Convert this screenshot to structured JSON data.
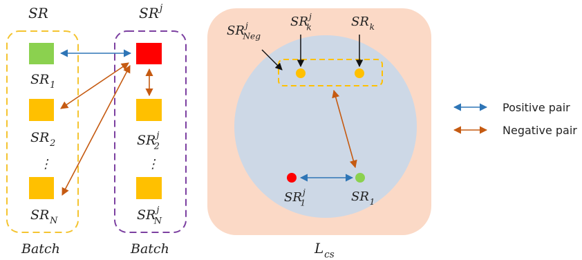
{
  "colors": {
    "batch_left_border": "#f4c430",
    "batch_right_border": "#7b3fa0",
    "anchor_green": "#8bd14f",
    "anchor_red": "#ff0000",
    "sample_orange": "#ffc000",
    "region_fill": "#fbd9c6",
    "circle_fill": "#cdd8e6",
    "positive_arrow": "#2e75b6",
    "negative_arrow": "#c55a11",
    "text": "#222222"
  },
  "left": {
    "col1_header": {
      "base": "SR",
      "sup": "",
      "sub": ""
    },
    "col2_header": {
      "base": "SR",
      "sup": "j",
      "sub": ""
    },
    "col1_labels": [
      {
        "base": "SR",
        "sup": "",
        "sub": "1"
      },
      {
        "base": "SR",
        "sup": "",
        "sub": "2"
      },
      {
        "base": "SR",
        "sup": "",
        "sub": "N"
      }
    ],
    "col2_labels": [
      {
        "base": "SR",
        "sup": "j",
        "sub": "2"
      },
      {
        "base": "SR",
        "sup": "j",
        "sub": "N"
      }
    ],
    "ellipsis": "⋮",
    "batch_label_1": "Batch",
    "batch_label_2": "Batch"
  },
  "right": {
    "neg_label": {
      "base": "SR",
      "sup": "j",
      "sub": "Neg"
    },
    "k_j_label": {
      "base": "SR",
      "sup": "j",
      "sub": "k"
    },
    "k_label": {
      "base": "SR",
      "sup": "",
      "sub": "k"
    },
    "one_j_label": {
      "base": "SR",
      "sup": "j",
      "sub": "1"
    },
    "one_label": {
      "base": "SR",
      "sup": "",
      "sub": "1"
    },
    "loss_label": {
      "base": "L",
      "sup": "",
      "sub": "cs"
    }
  },
  "legend": {
    "positive": "Positive pair",
    "negative": "Negative pair"
  }
}
